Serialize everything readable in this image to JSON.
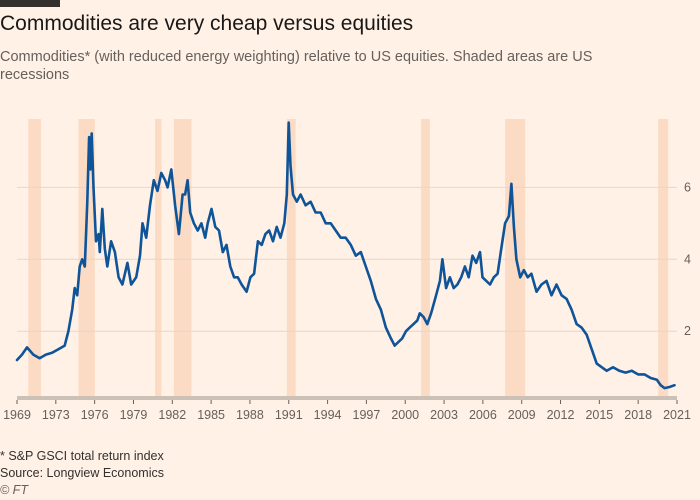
{
  "header": {
    "title": "Commodities are very cheap versus equities",
    "subtitle": "Commodities* (with reduced energy weighting) relative to US equities. Shaded areas are US recessions"
  },
  "footer": {
    "footnote": "* S&P GSCI total return index",
    "source": "Source: Longview Economics",
    "copyright": "© FT"
  },
  "colors": {
    "background": "#fff1e5",
    "line": "#0f5499",
    "recession": "#fbdbc3",
    "grid": "#e3d8cd",
    "text": "#33302e"
  },
  "chart_data": {
    "type": "line",
    "title": "Commodities are very cheap versus equities",
    "xlabel": "",
    "ylabel": "",
    "xlim": [
      1969,
      2021.6
    ],
    "ylim": [
      0.2,
      7.9
    ],
    "y_ticks": [
      2,
      4,
      6
    ],
    "x_tick_labels": [
      "1969",
      "1973",
      "1976",
      "1979",
      "1982",
      "1985",
      "1988",
      "1991",
      "1994",
      "1997",
      "2000",
      "2003",
      "2006",
      "2009",
      "2012",
      "2015",
      "2018",
      "2021"
    ],
    "grid": "horizontal",
    "recessions": [
      [
        1969.9,
        1970.9
      ],
      [
        1973.9,
        1975.2
      ],
      [
        1980.0,
        1980.5
      ],
      [
        1981.5,
        1982.9
      ],
      [
        1990.5,
        1991.2
      ],
      [
        2001.2,
        2001.9
      ],
      [
        2007.9,
        2009.5
      ],
      [
        2020.1,
        2020.9
      ]
    ],
    "series": [
      {
        "values": [
          [
            1969.0,
            1.2
          ],
          [
            1969.4,
            1.35
          ],
          [
            1969.8,
            1.55
          ],
          [
            1970.3,
            1.35
          ],
          [
            1970.8,
            1.25
          ],
          [
            1971.3,
            1.35
          ],
          [
            1971.8,
            1.4
          ],
          [
            1972.3,
            1.5
          ],
          [
            1972.8,
            1.6
          ],
          [
            1973.1,
            2.0
          ],
          [
            1973.4,
            2.6
          ],
          [
            1973.6,
            3.2
          ],
          [
            1973.8,
            3.0
          ],
          [
            1974.0,
            3.8
          ],
          [
            1974.2,
            4.0
          ],
          [
            1974.4,
            3.8
          ],
          [
            1974.6,
            5.6
          ],
          [
            1974.75,
            7.4
          ],
          [
            1974.85,
            6.5
          ],
          [
            1974.95,
            7.5
          ],
          [
            1975.1,
            6.0
          ],
          [
            1975.3,
            4.5
          ],
          [
            1975.5,
            4.7
          ],
          [
            1975.6,
            4.2
          ],
          [
            1975.8,
            5.4
          ],
          [
            1976.0,
            4.3
          ],
          [
            1976.2,
            3.8
          ],
          [
            1976.5,
            4.5
          ],
          [
            1976.8,
            4.2
          ],
          [
            1977.1,
            3.5
          ],
          [
            1977.4,
            3.3
          ],
          [
            1977.8,
            3.9
          ],
          [
            1978.1,
            3.3
          ],
          [
            1978.5,
            3.5
          ],
          [
            1978.8,
            4.1
          ],
          [
            1979.0,
            5.0
          ],
          [
            1979.3,
            4.6
          ],
          [
            1979.6,
            5.5
          ],
          [
            1979.9,
            6.2
          ],
          [
            1980.2,
            5.9
          ],
          [
            1980.5,
            6.4
          ],
          [
            1980.8,
            6.2
          ],
          [
            1981.0,
            6.0
          ],
          [
            1981.3,
            6.5
          ],
          [
            1981.6,
            5.5
          ],
          [
            1981.9,
            4.7
          ],
          [
            1982.2,
            5.8
          ],
          [
            1982.4,
            5.8
          ],
          [
            1982.6,
            6.2
          ],
          [
            1982.8,
            5.3
          ],
          [
            1983.1,
            5.0
          ],
          [
            1983.4,
            4.8
          ],
          [
            1983.7,
            5.0
          ],
          [
            1984.0,
            4.6
          ],
          [
            1984.2,
            5.0
          ],
          [
            1984.5,
            5.4
          ],
          [
            1984.8,
            4.9
          ],
          [
            1985.1,
            4.8
          ],
          [
            1985.4,
            4.2
          ],
          [
            1985.7,
            4.4
          ],
          [
            1986.0,
            3.8
          ],
          [
            1986.3,
            3.5
          ],
          [
            1986.6,
            3.5
          ],
          [
            1986.9,
            3.3
          ],
          [
            1987.1,
            3.2
          ],
          [
            1987.3,
            3.1
          ],
          [
            1987.6,
            3.5
          ],
          [
            1987.9,
            3.6
          ],
          [
            1988.2,
            4.5
          ],
          [
            1988.5,
            4.4
          ],
          [
            1988.8,
            4.7
          ],
          [
            1989.1,
            4.8
          ],
          [
            1989.4,
            4.5
          ],
          [
            1989.7,
            4.9
          ],
          [
            1990.0,
            4.6
          ],
          [
            1990.3,
            5.0
          ],
          [
            1990.5,
            5.8
          ],
          [
            1990.65,
            7.8
          ],
          [
            1990.8,
            6.6
          ],
          [
            1991.0,
            5.8
          ],
          [
            1991.3,
            5.6
          ],
          [
            1991.6,
            5.8
          ],
          [
            1992.0,
            5.5
          ],
          [
            1992.4,
            5.6
          ],
          [
            1992.8,
            5.3
          ],
          [
            1993.2,
            5.3
          ],
          [
            1993.6,
            5.0
          ],
          [
            1994.0,
            5.0
          ],
          [
            1994.4,
            4.8
          ],
          [
            1994.8,
            4.6
          ],
          [
            1995.2,
            4.6
          ],
          [
            1995.6,
            4.4
          ],
          [
            1996.0,
            4.1
          ],
          [
            1996.4,
            4.2
          ],
          [
            1996.8,
            3.8
          ],
          [
            1997.2,
            3.4
          ],
          [
            1997.6,
            2.9
          ],
          [
            1998.0,
            2.6
          ],
          [
            1998.4,
            2.1
          ],
          [
            1998.8,
            1.8
          ],
          [
            1999.1,
            1.6
          ],
          [
            1999.4,
            1.7
          ],
          [
            1999.7,
            1.8
          ],
          [
            2000.0,
            2.0
          ],
          [
            2000.3,
            2.1
          ],
          [
            2000.6,
            2.2
          ],
          [
            2000.9,
            2.3
          ],
          [
            2001.1,
            2.5
          ],
          [
            2001.4,
            2.4
          ],
          [
            2001.7,
            2.2
          ],
          [
            2002.0,
            2.5
          ],
          [
            2002.4,
            3.0
          ],
          [
            2002.7,
            3.4
          ],
          [
            2002.9,
            4.0
          ],
          [
            2003.2,
            3.2
          ],
          [
            2003.5,
            3.5
          ],
          [
            2003.8,
            3.2
          ],
          [
            2004.1,
            3.3
          ],
          [
            2004.4,
            3.5
          ],
          [
            2004.7,
            3.8
          ],
          [
            2005.0,
            3.5
          ],
          [
            2005.3,
            4.1
          ],
          [
            2005.6,
            3.9
          ],
          [
            2005.9,
            4.2
          ],
          [
            2006.1,
            3.5
          ],
          [
            2006.4,
            3.4
          ],
          [
            2006.7,
            3.3
          ],
          [
            2007.0,
            3.5
          ],
          [
            2007.3,
            3.6
          ],
          [
            2007.6,
            4.3
          ],
          [
            2007.9,
            5.0
          ],
          [
            2008.2,
            5.2
          ],
          [
            2008.4,
            6.1
          ],
          [
            2008.6,
            4.9
          ],
          [
            2008.8,
            4.0
          ],
          [
            2009.1,
            3.5
          ],
          [
            2009.4,
            3.7
          ],
          [
            2009.7,
            3.5
          ],
          [
            2010.0,
            3.6
          ],
          [
            2010.4,
            3.1
          ],
          [
            2010.8,
            3.3
          ],
          [
            2011.2,
            3.4
          ],
          [
            2011.6,
            3.0
          ],
          [
            2012.0,
            3.3
          ],
          [
            2012.4,
            3.0
          ],
          [
            2012.8,
            2.9
          ],
          [
            2013.2,
            2.6
          ],
          [
            2013.6,
            2.2
          ],
          [
            2014.0,
            2.1
          ],
          [
            2014.4,
            1.9
          ],
          [
            2014.8,
            1.5
          ],
          [
            2015.2,
            1.1
          ],
          [
            2015.6,
            1.0
          ],
          [
            2016.0,
            0.9
          ],
          [
            2016.5,
            1.0
          ],
          [
            2017.0,
            0.9
          ],
          [
            2017.5,
            0.85
          ],
          [
            2018.0,
            0.9
          ],
          [
            2018.5,
            0.8
          ],
          [
            2019.0,
            0.8
          ],
          [
            2019.5,
            0.7
          ],
          [
            2020.0,
            0.65
          ],
          [
            2020.3,
            0.5
          ],
          [
            2020.6,
            0.42
          ],
          [
            2021.0,
            0.45
          ],
          [
            2021.4,
            0.5
          ]
        ]
      }
    ]
  }
}
